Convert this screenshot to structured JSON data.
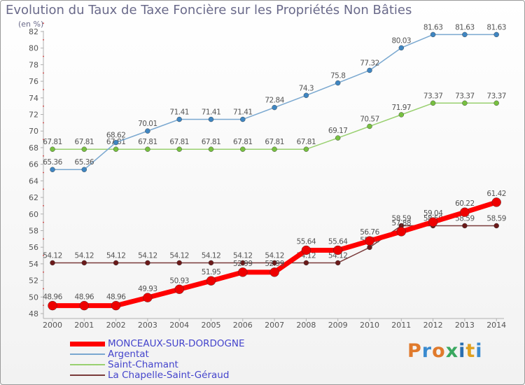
{
  "colors": {
    "title": "#6a6a8a",
    "axis": "#b0b0b0",
    "grid_dot": "#cc3333",
    "label": "#555555"
  },
  "logo": {
    "letters": [
      "P",
      "r",
      "o",
      "x",
      "i",
      "t",
      "i"
    ],
    "colors": [
      "#e07a2c",
      "#3a8bd0",
      "#e07a2c",
      "#3aa860",
      "#2a6fb0",
      "#e0a020",
      "#3a8bd0"
    ]
  },
  "chart_data": {
    "type": "line",
    "title": "Evolution du Taux de Taxe Foncière sur les Propriétés Non Bâties",
    "subtitle": "(en %)",
    "xlabel": "",
    "ylabel": "",
    "ylim": [
      48,
      82
    ],
    "yticks": [
      48,
      50,
      52,
      54,
      56,
      58,
      60,
      62,
      64,
      66,
      68,
      70,
      72,
      74,
      76,
      78,
      80,
      82
    ],
    "x": [
      "2000",
      "2001",
      "2002",
      "2003",
      "2004",
      "2005",
      "2006",
      "2007",
      "2008",
      "2009",
      "2010",
      "2011",
      "2012",
      "2013",
      "2014"
    ],
    "series": [
      {
        "name": "La Chapelle-Saint-Géraud",
        "color": "#7a3b3b",
        "marker": "#6b1a1a",
        "width": 1.5,
        "dot": 3.5,
        "values": [
          54.12,
          54.12,
          54.12,
          54.12,
          54.12,
          54.12,
          54.12,
          54.12,
          54.12,
          54.12,
          55.98,
          58.59,
          58.59,
          58.59,
          58.59
        ],
        "labels": [
          "54.12",
          "54.12",
          "54.12",
          "54.12",
          "54.12",
          "54.12",
          "54.12",
          "54.12",
          "54.12",
          "54.12",
          "55.98",
          "58.59",
          "58.59",
          "58.59",
          "58.59"
        ]
      },
      {
        "name": "Saint-Chamant",
        "color": "#99d070",
        "marker": "#77c040",
        "width": 1.5,
        "dot": 3.5,
        "values": [
          67.81,
          67.81,
          67.81,
          67.81,
          67.81,
          67.81,
          67.81,
          67.81,
          67.81,
          69.17,
          70.57,
          71.97,
          73.37,
          73.37,
          73.37
        ],
        "labels": [
          "67.81",
          "67.81",
          "67.81",
          "67.81",
          "67.81",
          "67.81",
          "67.81",
          "67.81",
          "67.81",
          "69.17",
          "70.57",
          "71.97",
          "73.37",
          "73.37",
          "73.37"
        ]
      },
      {
        "name": "Argentat",
        "color": "#7aa8d0",
        "marker": "#3f86c2",
        "width": 1.5,
        "dot": 3.5,
        "values": [
          65.36,
          65.36,
          68.62,
          70.01,
          71.41,
          71.41,
          71.41,
          72.84,
          74.3,
          75.8,
          77.32,
          80.03,
          81.63,
          81.63,
          81.63
        ],
        "labels": [
          "65.36",
          "65.36",
          "68.62",
          "70.01",
          "71.41",
          "71.41",
          "71.41",
          "72.84",
          "74.3",
          "75.8",
          "77.32",
          "80.03",
          "81.63",
          "81.63",
          "81.63"
        ]
      },
      {
        "name": "MONCEAUX-SUR-DORDOGNE",
        "color": "#ff0000",
        "marker": "#ee0000",
        "width": 7,
        "dot": 6.5,
        "values": [
          48.96,
          48.96,
          48.96,
          49.93,
          50.93,
          51.95,
          52.99,
          52.99,
          55.64,
          55.64,
          56.76,
          57.88,
          59.04,
          60.22,
          61.42
        ],
        "labels": [
          "48.96",
          "48.96",
          "48.96",
          "49.93",
          "50.93",
          "51.95",
          "52.99",
          "52.99",
          "55.64",
          "55.64",
          "56.76",
          "57.88",
          "59.04",
          "60.22",
          "61.42"
        ]
      }
    ],
    "legend": [
      {
        "name": "MONCEAUX-SUR-DORDOGNE",
        "line": "#ff0000",
        "text": "#4444cc",
        "width": 7
      },
      {
        "name": "Argentat",
        "line": "#7aa8d0",
        "text": "#4444cc",
        "width": 2
      },
      {
        "name": "Saint-Chamant",
        "line": "#99d070",
        "text": "#4444cc",
        "width": 2
      },
      {
        "name": "La Chapelle-Saint-Géraud",
        "line": "#7a3b3b",
        "text": "#4444cc",
        "width": 2
      }
    ],
    "legend_position": "bottom-left",
    "grid": false
  }
}
